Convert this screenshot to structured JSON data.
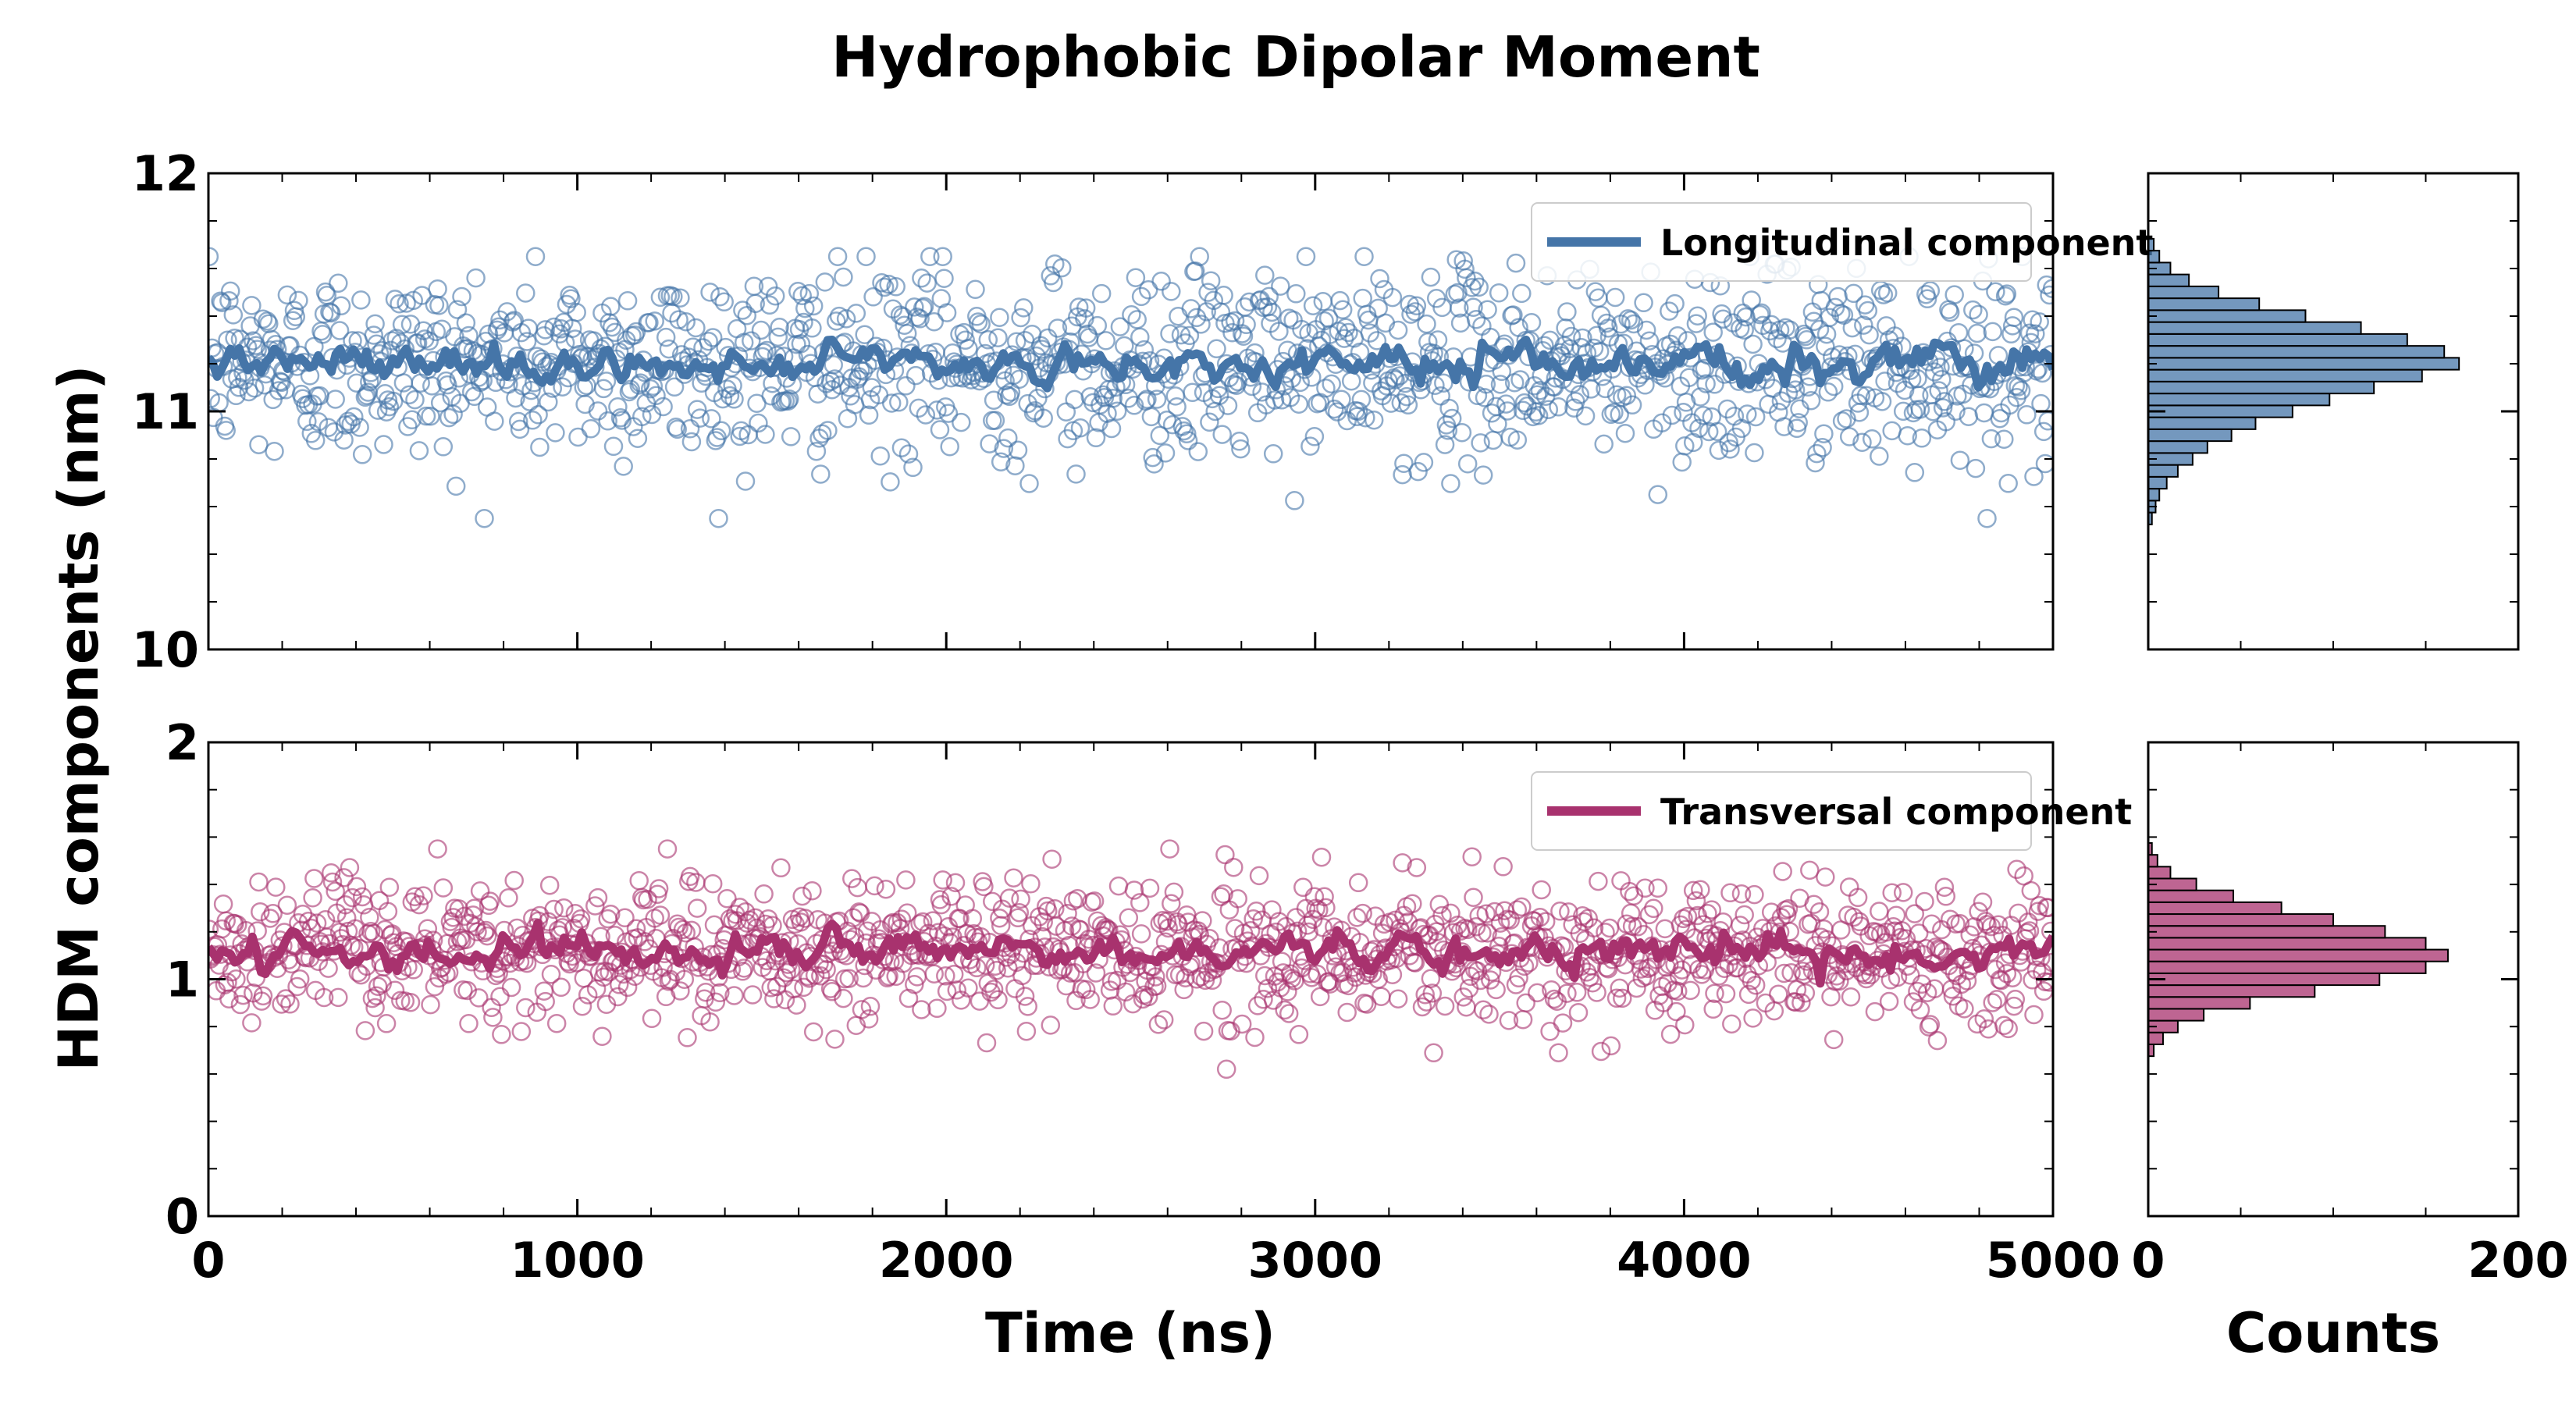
{
  "figure": {
    "title": "Hydrophobic Dipolar Moment",
    "ylabel": "HDM components (nm)",
    "xlabel_main": "Time (ns)",
    "xlabel_hist": "Counts"
  },
  "colors": {
    "longitudinal": "#4575a8",
    "transversal": "#a8326e",
    "hist_edge": "#000000",
    "axes": "#000000"
  },
  "chart_data": [
    {
      "type": "scatter",
      "panel": "top-main",
      "xlim": [
        0,
        5000
      ],
      "ylim": [
        10,
        12
      ],
      "x_ticks": [
        "0",
        "1000",
        "2000",
        "3000",
        "4000",
        "5000"
      ],
      "y_ticks": [
        "10",
        "11",
        "12"
      ],
      "legend": {
        "label": "Longitudinal component",
        "placement": "upper right"
      },
      "grid": false,
      "series": [
        {
          "name": "Longitudinal component",
          "kind": "scatter-open-circles",
          "x_range": [
            0,
            5000
          ],
          "n_points": 1300,
          "mean": 11.2,
          "std": 0.2,
          "range": [
            10.55,
            11.65
          ]
        },
        {
          "name": "Longitudinal component",
          "kind": "line-running-average",
          "x_range": [
            0,
            5000
          ],
          "mean": 11.2,
          "range": [
            11.05,
            11.33
          ]
        }
      ]
    },
    {
      "type": "bar",
      "panel": "top-hist",
      "orientation": "horizontal",
      "xlim": [
        0,
        200
      ],
      "ylim": [
        10,
        12
      ],
      "x_ticks": [
        "0",
        "200"
      ],
      "bin_centers": [
        10.55,
        10.6,
        10.65,
        10.7,
        10.75,
        10.8,
        10.85,
        10.9,
        10.95,
        11.0,
        11.05,
        11.1,
        11.15,
        11.2,
        11.25,
        11.3,
        11.35,
        11.4,
        11.45,
        11.5,
        11.55,
        11.6,
        11.65,
        11.7
      ],
      "values": [
        2,
        4,
        6,
        10,
        16,
        24,
        32,
        45,
        58,
        78,
        98,
        122,
        148,
        168,
        160,
        140,
        115,
        85,
        60,
        38,
        22,
        12,
        6,
        3
      ]
    },
    {
      "type": "scatter",
      "panel": "bottom-main",
      "xlim": [
        0,
        5000
      ],
      "ylim": [
        0,
        2
      ],
      "x_ticks": [
        "0",
        "1000",
        "2000",
        "3000",
        "4000",
        "5000"
      ],
      "y_ticks": [
        "0",
        "1",
        "2"
      ],
      "legend": {
        "label": "Transversal component",
        "placement": "upper right"
      },
      "grid": false,
      "series": [
        {
          "name": "Transversal component",
          "kind": "scatter-open-circles",
          "x_range": [
            0,
            5000
          ],
          "n_points": 1300,
          "mean": 1.12,
          "std": 0.15,
          "range": [
            0.62,
            1.55
          ]
        },
        {
          "name": "Transversal component",
          "kind": "line-running-average",
          "x_range": [
            0,
            5000
          ],
          "mean": 1.12,
          "range": [
            0.98,
            1.25
          ]
        }
      ]
    },
    {
      "type": "bar",
      "panel": "bottom-hist",
      "orientation": "horizontal",
      "xlim": [
        0,
        200
      ],
      "ylim": [
        0,
        2
      ],
      "x_ticks": [
        "0",
        "200"
      ],
      "bin_centers": [
        0.7,
        0.75,
        0.8,
        0.85,
        0.9,
        0.95,
        1.0,
        1.05,
        1.1,
        1.15,
        1.2,
        1.25,
        1.3,
        1.35,
        1.4,
        1.45,
        1.5,
        1.55
      ],
      "values": [
        3,
        8,
        16,
        30,
        55,
        90,
        125,
        150,
        162,
        150,
        128,
        100,
        72,
        46,
        26,
        12,
        5,
        2
      ]
    }
  ]
}
